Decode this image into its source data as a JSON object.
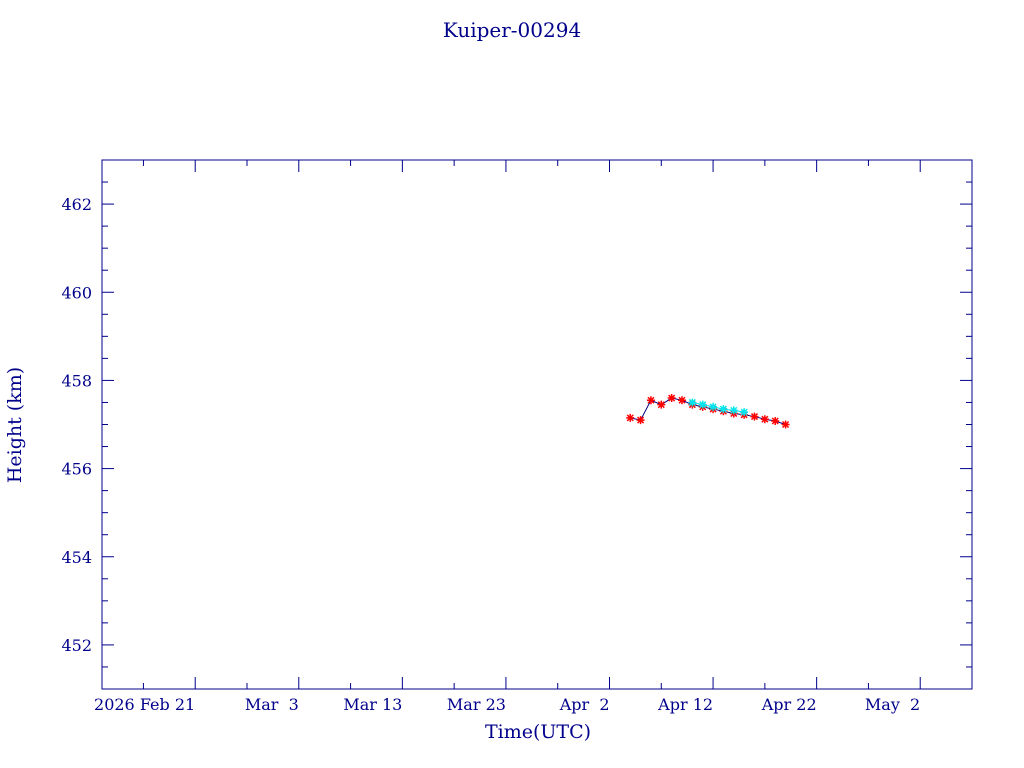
{
  "chart_data": {
    "type": "line",
    "title": "Kuiper-00294",
    "x_label": "Time(UTC)",
    "y_label": "Height (km)",
    "x": [
      "2026-04-04",
      "2026-04-05",
      "2026-04-06",
      "2026-04-07",
      "2026-04-08",
      "2026-04-09",
      "2026-04-10",
      "2026-04-11",
      "2026-04-12",
      "2026-04-13",
      "2026-04-14",
      "2026-04-15",
      "2026-04-16",
      "2026-04-17",
      "2026-04-18",
      "2026-04-19"
    ],
    "series": [
      {
        "color": "#ff0000",
        "line_color": "#000080",
        "values": [
          457.15,
          457.1,
          457.55,
          457.45,
          457.6,
          457.55,
          457.45,
          457.4,
          457.35,
          457.3,
          457.25,
          457.22,
          457.18,
          457.12,
          457.08,
          457.0
        ]
      },
      {
        "color": "#00e5ee",
        "values": [
          null,
          null,
          null,
          null,
          null,
          null,
          457.5,
          457.45,
          457.4,
          457.35,
          457.32,
          457.28,
          null,
          null,
          null,
          null
        ]
      }
    ],
    "xlim": [
      "2026-02-12",
      "2026-05-07"
    ],
    "xticks": [
      {
        "value": "2026-02-21",
        "label": "2026 Feb 21"
      },
      {
        "value": "2026-03-03",
        "label": "Mar  3"
      },
      {
        "value": "2026-03-13",
        "label": "Mar 13"
      },
      {
        "value": "2026-03-23",
        "label": "Mar 23"
      },
      {
        "value": "2026-04-02",
        "label": "Apr  2"
      },
      {
        "value": "2026-04-12",
        "label": "Apr 12"
      },
      {
        "value": "2026-04-22",
        "label": "Apr 22"
      },
      {
        "value": "2026-05-02",
        "label": "May  2"
      }
    ],
    "ylim": [
      451,
      463
    ],
    "yticks": [
      452,
      454,
      456,
      458,
      460,
      462
    ],
    "axis_color": "#00008b"
  }
}
